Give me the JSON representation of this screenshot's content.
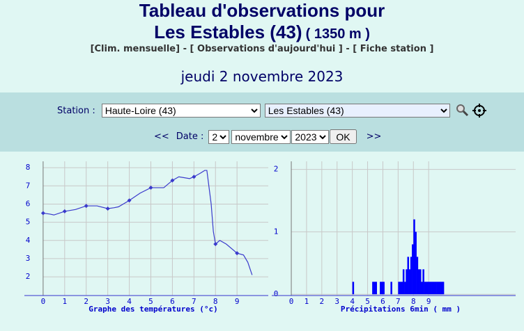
{
  "header": {
    "title": "Tableau d'observations pour",
    "station": "Les Estables (43)",
    "altitude": "( 1350 m )",
    "links": [
      "[Clim. mensuelle]",
      "[ Observations d'aujourd'hui ]",
      "[ Fiche station ]"
    ],
    "separator": "-",
    "date": "jeudi 2 novembre 2023"
  },
  "form": {
    "station_label": "Station :",
    "department": "Haute-Loire (43)",
    "station": "Les Estables (43)",
    "prev": "<<",
    "date_label": "Date :",
    "day": "2",
    "month": "novembre",
    "year": "2023",
    "ok": "OK",
    "next": ">>"
  },
  "chart_data": [
    {
      "type": "line",
      "x_label": "Graphe des températures (°c)",
      "color": "#3a3acc",
      "x": [
        0,
        0.3,
        0.5,
        1,
        1.5,
        2,
        2.5,
        3,
        3.3,
        3.5,
        4,
        4.5,
        5,
        5.6,
        6,
        6.3,
        6.8,
        7,
        7.3,
        7.5,
        7.6,
        7.8,
        7.9,
        8,
        8.2,
        8.5,
        9,
        9.3,
        9.5,
        9.7
      ],
      "values": [
        5.5,
        5.45,
        5.4,
        5.6,
        5.7,
        5.9,
        5.9,
        5.75,
        5.8,
        5.85,
        6.2,
        6.6,
        6.9,
        6.9,
        7.3,
        7.5,
        7.4,
        7.5,
        7.7,
        7.85,
        7.85,
        6.0,
        4.5,
        3.8,
        4.0,
        3.8,
        3.3,
        3.2,
        2.8,
        2.1
      ],
      "xlim": [
        -0.87,
        10.45
      ],
      "ylim": [
        0.97,
        8.35
      ],
      "xticks": [
        0,
        1,
        2,
        3,
        4,
        5,
        6,
        7,
        8,
        9
      ],
      "yticks": [
        2,
        3,
        4,
        5,
        6,
        7,
        8
      ],
      "grid": true
    },
    {
      "type": "bar",
      "x_label": "Précipitations 6min ( mm )",
      "color": "#0000ff",
      "x": [
        4.0,
        5.3,
        5.4,
        5.5,
        5.8,
        5.9,
        6.0,
        6.5,
        7.0,
        7.1,
        7.2,
        7.3,
        7.4,
        7.5,
        7.6,
        7.7,
        7.8,
        7.9,
        8.0,
        8.1,
        8.2,
        8.3,
        8.4,
        8.5,
        8.6,
        8.7,
        8.8,
        8.9,
        9.0,
        9.1,
        9.2,
        9.3,
        9.4,
        9.5,
        9.6,
        9.7,
        9.8,
        9.9
      ],
      "values": [
        0.2,
        0.2,
        0.2,
        0.2,
        0.2,
        0.2,
        0.2,
        0.2,
        0.2,
        0.2,
        0.2,
        0.4,
        0.2,
        0.4,
        0.6,
        0.4,
        0.6,
        0.8,
        1.2,
        1.0,
        0.6,
        0.4,
        0.4,
        0.2,
        0.4,
        0.2,
        0.2,
        0.2,
        0.2,
        0.2,
        0.2,
        0.2,
        0.2,
        0.2,
        0.2,
        0.2,
        0.2,
        0.2
      ],
      "xlim": [
        -1.28,
        14.7
      ],
      "ylim": [
        -0.02,
        2.13
      ],
      "xticks": [
        0,
        1,
        2,
        3,
        4,
        5,
        6,
        7,
        8,
        9
      ],
      "yticks": [
        0,
        1,
        2
      ],
      "grid": true
    }
  ]
}
